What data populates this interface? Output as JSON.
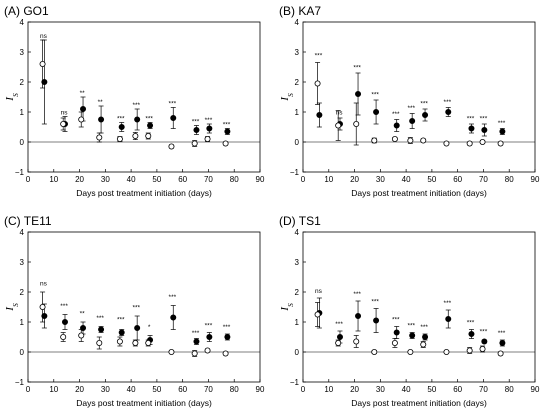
{
  "chart_data": [
    {
      "type": "scatter",
      "title": "(A) GO1",
      "xlabel": "Days post treatment initiation (days)",
      "ylabel": "I",
      "ylabel_sub": "S",
      "xlim": [
        0,
        90
      ],
      "ylim": [
        -1,
        4
      ],
      "xticks": [
        0,
        10,
        20,
        30,
        40,
        50,
        60,
        70,
        80,
        90
      ],
      "yticks": [
        -1,
        0,
        1,
        2,
        3,
        4
      ],
      "series": [
        {
          "marker": "filled",
          "x": [
            6,
            14,
            21,
            28,
            36,
            42,
            47,
            56,
            65,
            70,
            77
          ],
          "y": [
            2.0,
            0.6,
            1.1,
            0.75,
            0.5,
            0.75,
            0.55,
            0.8,
            0.4,
            0.45,
            0.35
          ],
          "err": [
            1.4,
            0.25,
            0.4,
            0.45,
            0.15,
            0.35,
            0.1,
            0.35,
            0.15,
            0.15,
            0.1
          ]
        },
        {
          "marker": "open",
          "x": [
            6,
            14,
            21,
            28,
            36,
            42,
            47,
            56,
            65,
            70,
            77
          ],
          "y": [
            2.6,
            0.6,
            0.75,
            0.15,
            0.1,
            0.2,
            0.2,
            -0.15,
            -0.05,
            0.1,
            -0.05
          ],
          "err": [
            0.8,
            0.2,
            0.25,
            0.15,
            0.08,
            0.12,
            0.1,
            0.05,
            0.1,
            0.08,
            0.05
          ]
        }
      ],
      "annotations": [
        {
          "x": 6,
          "y": 3.4,
          "text": "ns"
        },
        {
          "x": 14,
          "y": 0.85,
          "text": "ns"
        },
        {
          "x": 21,
          "y": 1.5,
          "text": "**"
        },
        {
          "x": 28,
          "y": 1.2,
          "text": "**"
        },
        {
          "x": 36,
          "y": 0.65,
          "text": "***"
        },
        {
          "x": 42,
          "y": 1.1,
          "text": "***"
        },
        {
          "x": 47,
          "y": 0.65,
          "text": "***"
        },
        {
          "x": 56,
          "y": 1.15,
          "text": "***"
        },
        {
          "x": 65,
          "y": 0.55,
          "text": "***"
        },
        {
          "x": 70,
          "y": 0.6,
          "text": "***"
        },
        {
          "x": 77,
          "y": 0.45,
          "text": "***"
        }
      ]
    },
    {
      "type": "scatter",
      "title": "(B) KA7",
      "xlabel": "Days post treatment initiation (days)",
      "ylabel": "I",
      "ylabel_sub": "S",
      "xlim": [
        0,
        90
      ],
      "ylim": [
        -1,
        4
      ],
      "xticks": [
        0,
        10,
        20,
        30,
        40,
        50,
        60,
        70,
        80,
        90
      ],
      "yticks": [
        -1,
        0,
        1,
        2,
        3,
        4
      ],
      "series": [
        {
          "marker": "filled",
          "x": [
            6,
            14,
            21,
            28,
            36,
            42,
            47,
            56,
            65,
            70,
            77
          ],
          "y": [
            0.9,
            0.6,
            1.6,
            1.0,
            0.55,
            0.7,
            0.9,
            1.0,
            0.45,
            0.4,
            0.35
          ],
          "err": [
            0.4,
            0.2,
            0.7,
            0.4,
            0.2,
            0.25,
            0.2,
            0.15,
            0.15,
            0.2,
            0.1
          ]
        },
        {
          "marker": "open",
          "x": [
            6,
            14,
            21,
            28,
            36,
            42,
            47,
            56,
            65,
            70,
            77
          ],
          "y": [
            1.95,
            0.55,
            0.6,
            0.05,
            0.1,
            0.05,
            0.05,
            -0.05,
            -0.05,
            0.0,
            -0.05
          ],
          "err": [
            0.7,
            0.5,
            0.7,
            0.08,
            0.05,
            0.1,
            0.05,
            0.03,
            0.05,
            0.05,
            0.05
          ]
        }
      ],
      "annotations": [
        {
          "x": 6,
          "y": 2.75,
          "text": "***"
        },
        {
          "x": 14,
          "y": 0.85,
          "text": "ns"
        },
        {
          "x": 21,
          "y": 2.35,
          "text": "***"
        },
        {
          "x": 28,
          "y": 1.45,
          "text": "***"
        },
        {
          "x": 36,
          "y": 0.8,
          "text": "***"
        },
        {
          "x": 42,
          "y": 1.0,
          "text": "***"
        },
        {
          "x": 47,
          "y": 1.15,
          "text": "***"
        },
        {
          "x": 56,
          "y": 1.2,
          "text": "***"
        },
        {
          "x": 65,
          "y": 0.65,
          "text": "***"
        },
        {
          "x": 70,
          "y": 0.65,
          "text": "***"
        },
        {
          "x": 77,
          "y": 0.5,
          "text": "***"
        }
      ]
    },
    {
      "type": "scatter",
      "title": "(C) TE11",
      "xlabel": "Days post treatment initiation (days)",
      "ylabel": "I",
      "ylabel_sub": "S",
      "xlim": [
        0,
        90
      ],
      "ylim": [
        -1,
        4
      ],
      "xticks": [
        0,
        10,
        20,
        30,
        40,
        50,
        60,
        70,
        80,
        90
      ],
      "yticks": [
        -1,
        0,
        1,
        2,
        3,
        4
      ],
      "series": [
        {
          "marker": "filled",
          "x": [
            6,
            14,
            21,
            28,
            36,
            42,
            47,
            56,
            65,
            70,
            77
          ],
          "y": [
            1.2,
            1.0,
            0.8,
            0.75,
            0.65,
            0.8,
            0.4,
            1.15,
            0.35,
            0.5,
            0.5
          ],
          "err": [
            0.4,
            0.25,
            0.2,
            0.1,
            0.1,
            0.4,
            0.15,
            0.4,
            0.1,
            0.15,
            0.1
          ]
        },
        {
          "marker": "open",
          "x": [
            6,
            14,
            21,
            28,
            36,
            42,
            47,
            56,
            65,
            70,
            77
          ],
          "y": [
            1.5,
            0.5,
            0.55,
            0.3,
            0.35,
            0.3,
            0.3,
            0.0,
            -0.05,
            0.05,
            -0.05
          ],
          "err": [
            0.5,
            0.15,
            0.2,
            0.2,
            0.15,
            0.1,
            0.1,
            0.03,
            0.1,
            0.05,
            0.05
          ]
        }
      ],
      "annotations": [
        {
          "x": 6,
          "y": 2.15,
          "text": "ns"
        },
        {
          "x": 14,
          "y": 1.4,
          "text": "***"
        },
        {
          "x": 21,
          "y": 1.15,
          "text": "**"
        },
        {
          "x": 28,
          "y": 1.0,
          "text": "***"
        },
        {
          "x": 36,
          "y": 0.95,
          "text": "***"
        },
        {
          "x": 42,
          "y": 1.35,
          "text": "***"
        },
        {
          "x": 47,
          "y": 0.7,
          "text": "*"
        },
        {
          "x": 56,
          "y": 1.7,
          "text": "***"
        },
        {
          "x": 65,
          "y": 0.5,
          "text": "***"
        },
        {
          "x": 70,
          "y": 0.75,
          "text": "***"
        },
        {
          "x": 77,
          "y": 0.7,
          "text": "***"
        }
      ]
    },
    {
      "type": "scatter",
      "title": "(D) TS1",
      "xlabel": "Days post treatment initiation (days)",
      "ylabel": "I",
      "ylabel_sub": "S",
      "xlim": [
        0,
        90
      ],
      "ylim": [
        -1,
        4
      ],
      "xticks": [
        0,
        10,
        20,
        30,
        40,
        50,
        60,
        70,
        80,
        90
      ],
      "yticks": [
        -1,
        0,
        1,
        2,
        3,
        4
      ],
      "series": [
        {
          "marker": "filled",
          "x": [
            6,
            14,
            21,
            28,
            36,
            42,
            47,
            56,
            65,
            70,
            77
          ],
          "y": [
            1.3,
            0.5,
            1.2,
            1.05,
            0.65,
            0.55,
            0.5,
            1.1,
            0.6,
            0.35,
            0.3
          ],
          "err": [
            0.5,
            0.2,
            0.5,
            0.4,
            0.2,
            0.1,
            0.1,
            0.3,
            0.15,
            0.05,
            0.1
          ]
        },
        {
          "marker": "open",
          "x": [
            6,
            14,
            21,
            28,
            36,
            42,
            47,
            56,
            65,
            70,
            77
          ],
          "y": [
            1.25,
            0.3,
            0.35,
            0.0,
            0.3,
            0.0,
            0.25,
            0.0,
            0.05,
            0.1,
            -0.05
          ],
          "err": [
            0.4,
            0.1,
            0.2,
            0.05,
            0.15,
            0.03,
            0.1,
            0.03,
            0.1,
            0.1,
            0.05
          ]
        }
      ],
      "annotations": [
        {
          "x": 6,
          "y": 1.9,
          "text": "ns"
        },
        {
          "x": 14,
          "y": 0.8,
          "text": "***"
        },
        {
          "x": 21,
          "y": 1.8,
          "text": "***"
        },
        {
          "x": 28,
          "y": 1.55,
          "text": "***"
        },
        {
          "x": 36,
          "y": 0.95,
          "text": "***"
        },
        {
          "x": 42,
          "y": 0.75,
          "text": "***"
        },
        {
          "x": 47,
          "y": 0.7,
          "text": "***"
        },
        {
          "x": 56,
          "y": 1.5,
          "text": "***"
        },
        {
          "x": 65,
          "y": 0.85,
          "text": "***"
        },
        {
          "x": 70,
          "y": 0.55,
          "text": "***"
        },
        {
          "x": 77,
          "y": 0.5,
          "text": "***"
        }
      ]
    }
  ]
}
